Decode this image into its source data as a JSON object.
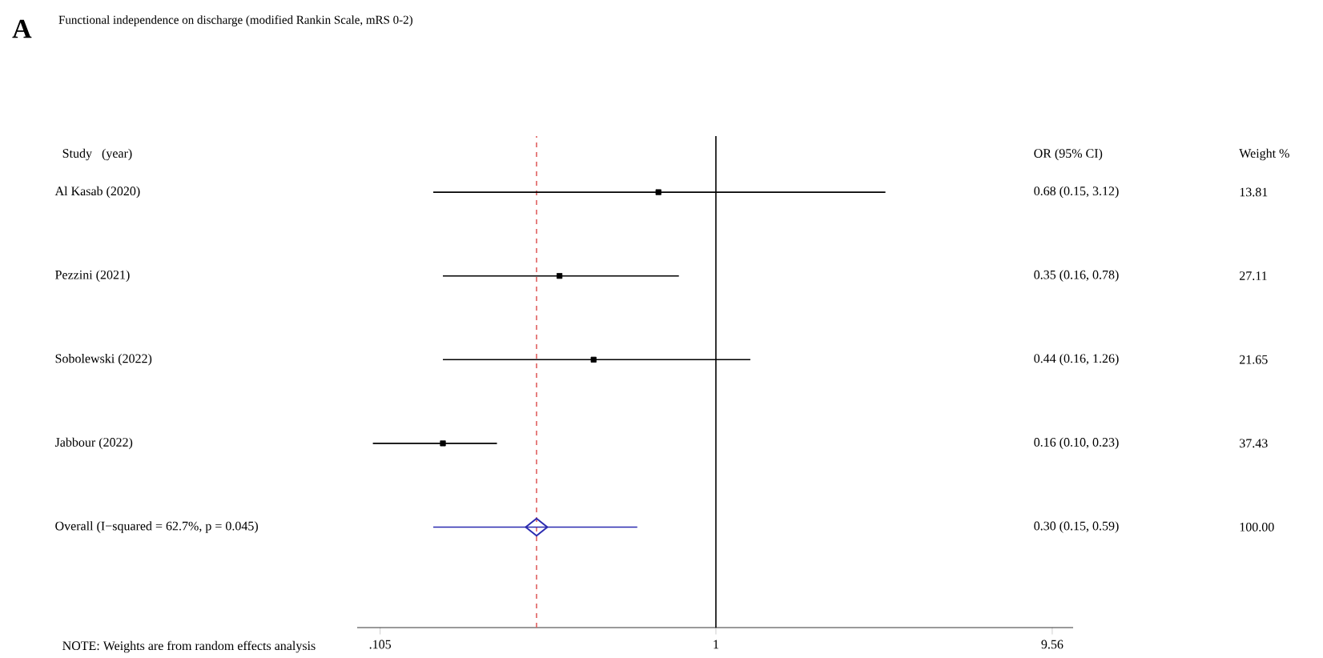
{
  "chart_data": {
    "type": "scatter",
    "title": "A",
    "subtitle": "Functional independence on discharge (modified Rankin Scale, mRS 0-2)",
    "categories": [
      "Al Kasab (2020)",
      "Pezzini (2021)",
      "Sobolewski (2022)",
      "Jabbour (2022)",
      "Overall (I−squared = 62.7%, p = 0.045)"
    ],
    "log": "x",
    "orientation": "horizontal",
    "xlim": [
      0.09,
      11
    ],
    "xticks": [
      {
        "value": 0.105,
        "label": ".105"
      },
      {
        "value": 1,
        "label": "1"
      },
      {
        "value": 9.56,
        "label": "9.56"
      }
    ],
    "series": [
      {
        "color": "#000000",
        "marker": "square",
        "values": [
          0.68,
          0.35,
          0.44,
          0.16,
          null
        ],
        "errors": [
          [
            0.15,
            3.12
          ],
          [
            0.16,
            0.78
          ],
          [
            0.16,
            1.26
          ],
          [
            0.1,
            0.23
          ],
          null
        ]
      },
      {
        "color": "#2b2bb0",
        "marker": "diamond",
        "values": [
          null,
          null,
          null,
          null,
          0.3
        ],
        "errors": [
          null,
          null,
          null,
          null,
          [
            0.15,
            0.59
          ]
        ]
      }
    ],
    "ref_lines": [
      {
        "axis": "x",
        "value": 1,
        "color": "#000000",
        "line_style": "solid"
      },
      {
        "axis": "x",
        "value": 0.3,
        "color": "#e06060",
        "line_style": "dashed"
      }
    ],
    "annotations": [
      "Study   (year)",
      "OR (95% CI)",
      "Weight %",
      "0.68 (0.15, 3.12)",
      "0.35 (0.16, 0.78)",
      "0.44 (0.16, 1.26)",
      "0.16 (0.10, 0.23)",
      "0.30 (0.15, 0.59)",
      "13.81",
      "27.11",
      "21.65",
      "37.43",
      "100.00",
      "NOTE: Weights are from random effects analysis"
    ]
  }
}
